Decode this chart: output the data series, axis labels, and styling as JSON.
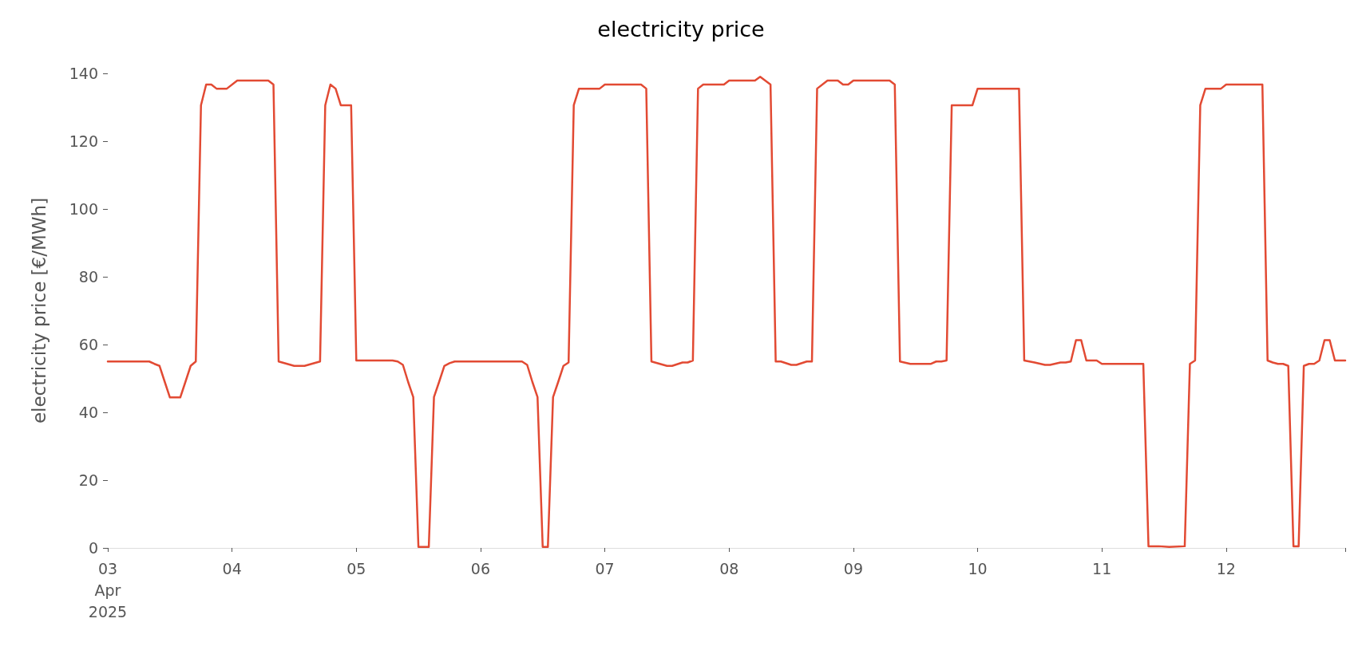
{
  "chart_data": {
    "type": "line",
    "title": "electricity price",
    "ylabel": "electricity price [€/MWh]",
    "x": [
      "2025-04-03T00:00",
      "2025-04-03T08:00",
      "2025-04-03T09:00",
      "2025-04-03T10:00",
      "2025-04-03T11:00",
      "2025-04-03T12:00",
      "2025-04-03T14:00",
      "2025-04-03T15:00",
      "2025-04-03T16:00",
      "2025-04-03T17:00",
      "2025-04-03T18:00",
      "2025-04-03T19:00",
      "2025-04-03T20:00",
      "2025-04-03T21:00",
      "2025-04-03T23:00",
      "2025-04-04T01:00",
      "2025-04-04T07:00",
      "2025-04-04T08:00",
      "2025-04-04T09:00",
      "2025-04-04T12:00",
      "2025-04-04T14:00",
      "2025-04-04T17:00",
      "2025-04-04T18:00",
      "2025-04-04T19:00",
      "2025-04-04T20:00",
      "2025-04-04T21:00",
      "2025-04-04T23:00",
      "2025-04-05T00:00",
      "2025-04-05T07:00",
      "2025-04-05T08:00",
      "2025-04-05T09:00",
      "2025-04-05T10:00",
      "2025-04-05T11:00",
      "2025-04-05T12:00",
      "2025-04-05T14:00",
      "2025-04-05T15:00",
      "2025-04-05T16:00",
      "2025-04-05T17:00",
      "2025-04-05T18:00",
      "2025-04-05T19:00",
      "2025-04-06T08:00",
      "2025-04-06T09:00",
      "2025-04-06T10:00",
      "2025-04-06T11:00",
      "2025-04-06T12:00",
      "2025-04-06T13:00",
      "2025-04-06T14:00",
      "2025-04-06T15:00",
      "2025-04-06T16:00",
      "2025-04-06T17:00",
      "2025-04-06T18:00",
      "2025-04-06T19:00",
      "2025-04-06T23:00",
      "2025-04-07T00:00",
      "2025-04-07T07:00",
      "2025-04-07T08:00",
      "2025-04-07T09:00",
      "2025-04-07T12:00",
      "2025-04-07T13:00",
      "2025-04-07T15:00",
      "2025-04-07T16:00",
      "2025-04-07T17:00",
      "2025-04-07T18:00",
      "2025-04-07T19:00",
      "2025-04-07T23:00",
      "2025-04-08T00:00",
      "2025-04-08T05:00",
      "2025-04-08T06:00",
      "2025-04-08T08:00",
      "2025-04-08T09:00",
      "2025-04-08T10:00",
      "2025-04-08T12:00",
      "2025-04-08T13:00",
      "2025-04-08T15:00",
      "2025-04-08T16:00",
      "2025-04-08T17:00",
      "2025-04-08T19:00",
      "2025-04-08T21:00",
      "2025-04-08T22:00",
      "2025-04-08T23:00",
      "2025-04-09T00:00",
      "2025-04-09T07:00",
      "2025-04-09T08:00",
      "2025-04-09T09:00",
      "2025-04-09T11:00",
      "2025-04-09T15:00",
      "2025-04-09T16:00",
      "2025-04-09T17:00",
      "2025-04-09T18:00",
      "2025-04-09T19:00",
      "2025-04-09T23:00",
      "2025-04-10T00:00",
      "2025-04-10T08:00",
      "2025-04-10T09:00",
      "2025-04-10T10:00",
      "2025-04-10T11:00",
      "2025-04-10T13:00",
      "2025-04-10T14:00",
      "2025-04-10T16:00",
      "2025-04-10T17:00",
      "2025-04-10T18:00",
      "2025-04-10T19:00",
      "2025-04-10T20:00",
      "2025-04-10T21:00",
      "2025-04-10T23:00",
      "2025-04-11T00:00",
      "2025-04-11T08:00",
      "2025-04-11T09:00",
      "2025-04-11T11:00",
      "2025-04-11T13:00",
      "2025-04-11T16:00",
      "2025-04-11T17:00",
      "2025-04-11T18:00",
      "2025-04-11T19:00",
      "2025-04-11T20:00",
      "2025-04-11T23:00",
      "2025-04-12T00:00",
      "2025-04-12T07:00",
      "2025-04-12T08:00",
      "2025-04-12T09:00",
      "2025-04-12T10:00",
      "2025-04-12T11:00",
      "2025-04-12T12:00",
      "2025-04-12T13:00",
      "2025-04-12T14:00",
      "2025-04-12T15:00",
      "2025-04-12T16:00",
      "2025-04-12T17:00",
      "2025-04-12T18:00",
      "2025-04-12T19:00",
      "2025-04-12T20:00",
      "2025-04-12T21:00",
      "2025-04-12T23:00"
    ],
    "series": [
      {
        "color": "#e24a33",
        "values": [
          55,
          55,
          54.3,
          53.7,
          49,
          44.4,
          44.4,
          49,
          53.7,
          55,
          130.6,
          136.7,
          136.7,
          135.5,
          135.5,
          137.9,
          137.9,
          136.7,
          55,
          53.7,
          53.7,
          55,
          130.6,
          136.7,
          135.5,
          130.6,
          130.6,
          55.3,
          55.3,
          55,
          54,
          49,
          44.5,
          0.3,
          0.3,
          44.5,
          49,
          53.7,
          54.5,
          55,
          55,
          54,
          49,
          44.5,
          0.3,
          0.3,
          44.5,
          49,
          53.7,
          54.7,
          130.6,
          135.5,
          135.5,
          136.7,
          136.7,
          135.5,
          55,
          53.7,
          53.7,
          54.7,
          54.7,
          55.3,
          135.5,
          136.7,
          136.7,
          137.9,
          137.9,
          139,
          136.7,
          55,
          55,
          54,
          54,
          55,
          55,
          135.5,
          137.9,
          137.9,
          136.7,
          136.7,
          137.9,
          137.9,
          136.7,
          55,
          54.3,
          54.3,
          55,
          55,
          55.3,
          130.6,
          130.6,
          135.5,
          135.5,
          55.3,
          55,
          54.7,
          54,
          54,
          54.7,
          54.7,
          55,
          61.3,
          61.3,
          55.3,
          55.3,
          54.3,
          54.3,
          0.5,
          0.5,
          0.3,
          0.5,
          54.3,
          55.3,
          130.6,
          135.5,
          135.5,
          136.7,
          136.7,
          55.3,
          54.7,
          54.3,
          54.3,
          53.7,
          0.5,
          0.5,
          53.7,
          54.3,
          54.3,
          55.3,
          61.3,
          61.3,
          55.3,
          55.3
        ]
      }
    ],
    "xlim": [
      "2025-04-03T00:00",
      "2025-04-12T23:00"
    ],
    "xticks": [
      {
        "value": "2025-04-03T00:00",
        "label": "03\nApr\n2025"
      },
      {
        "value": "2025-04-04T00:00",
        "label": "04"
      },
      {
        "value": "2025-04-05T00:00",
        "label": "05"
      },
      {
        "value": "2025-04-06T00:00",
        "label": "06"
      },
      {
        "value": "2025-04-07T00:00",
        "label": "07"
      },
      {
        "value": "2025-04-08T00:00",
        "label": "08"
      },
      {
        "value": "2025-04-09T00:00",
        "label": "09"
      },
      {
        "value": "2025-04-10T00:00",
        "label": "10"
      },
      {
        "value": "2025-04-11T00:00",
        "label": "11"
      },
      {
        "value": "2025-04-12T00:00",
        "label": "12"
      },
      {
        "value": "2025-04-12T23:00",
        "label": null
      }
    ],
    "ylim": [
      0,
      140
    ],
    "yticks": [
      0,
      20,
      40,
      60,
      80,
      100,
      120,
      140
    ],
    "grid": false,
    "marker": "none",
    "line_style": "solid"
  }
}
